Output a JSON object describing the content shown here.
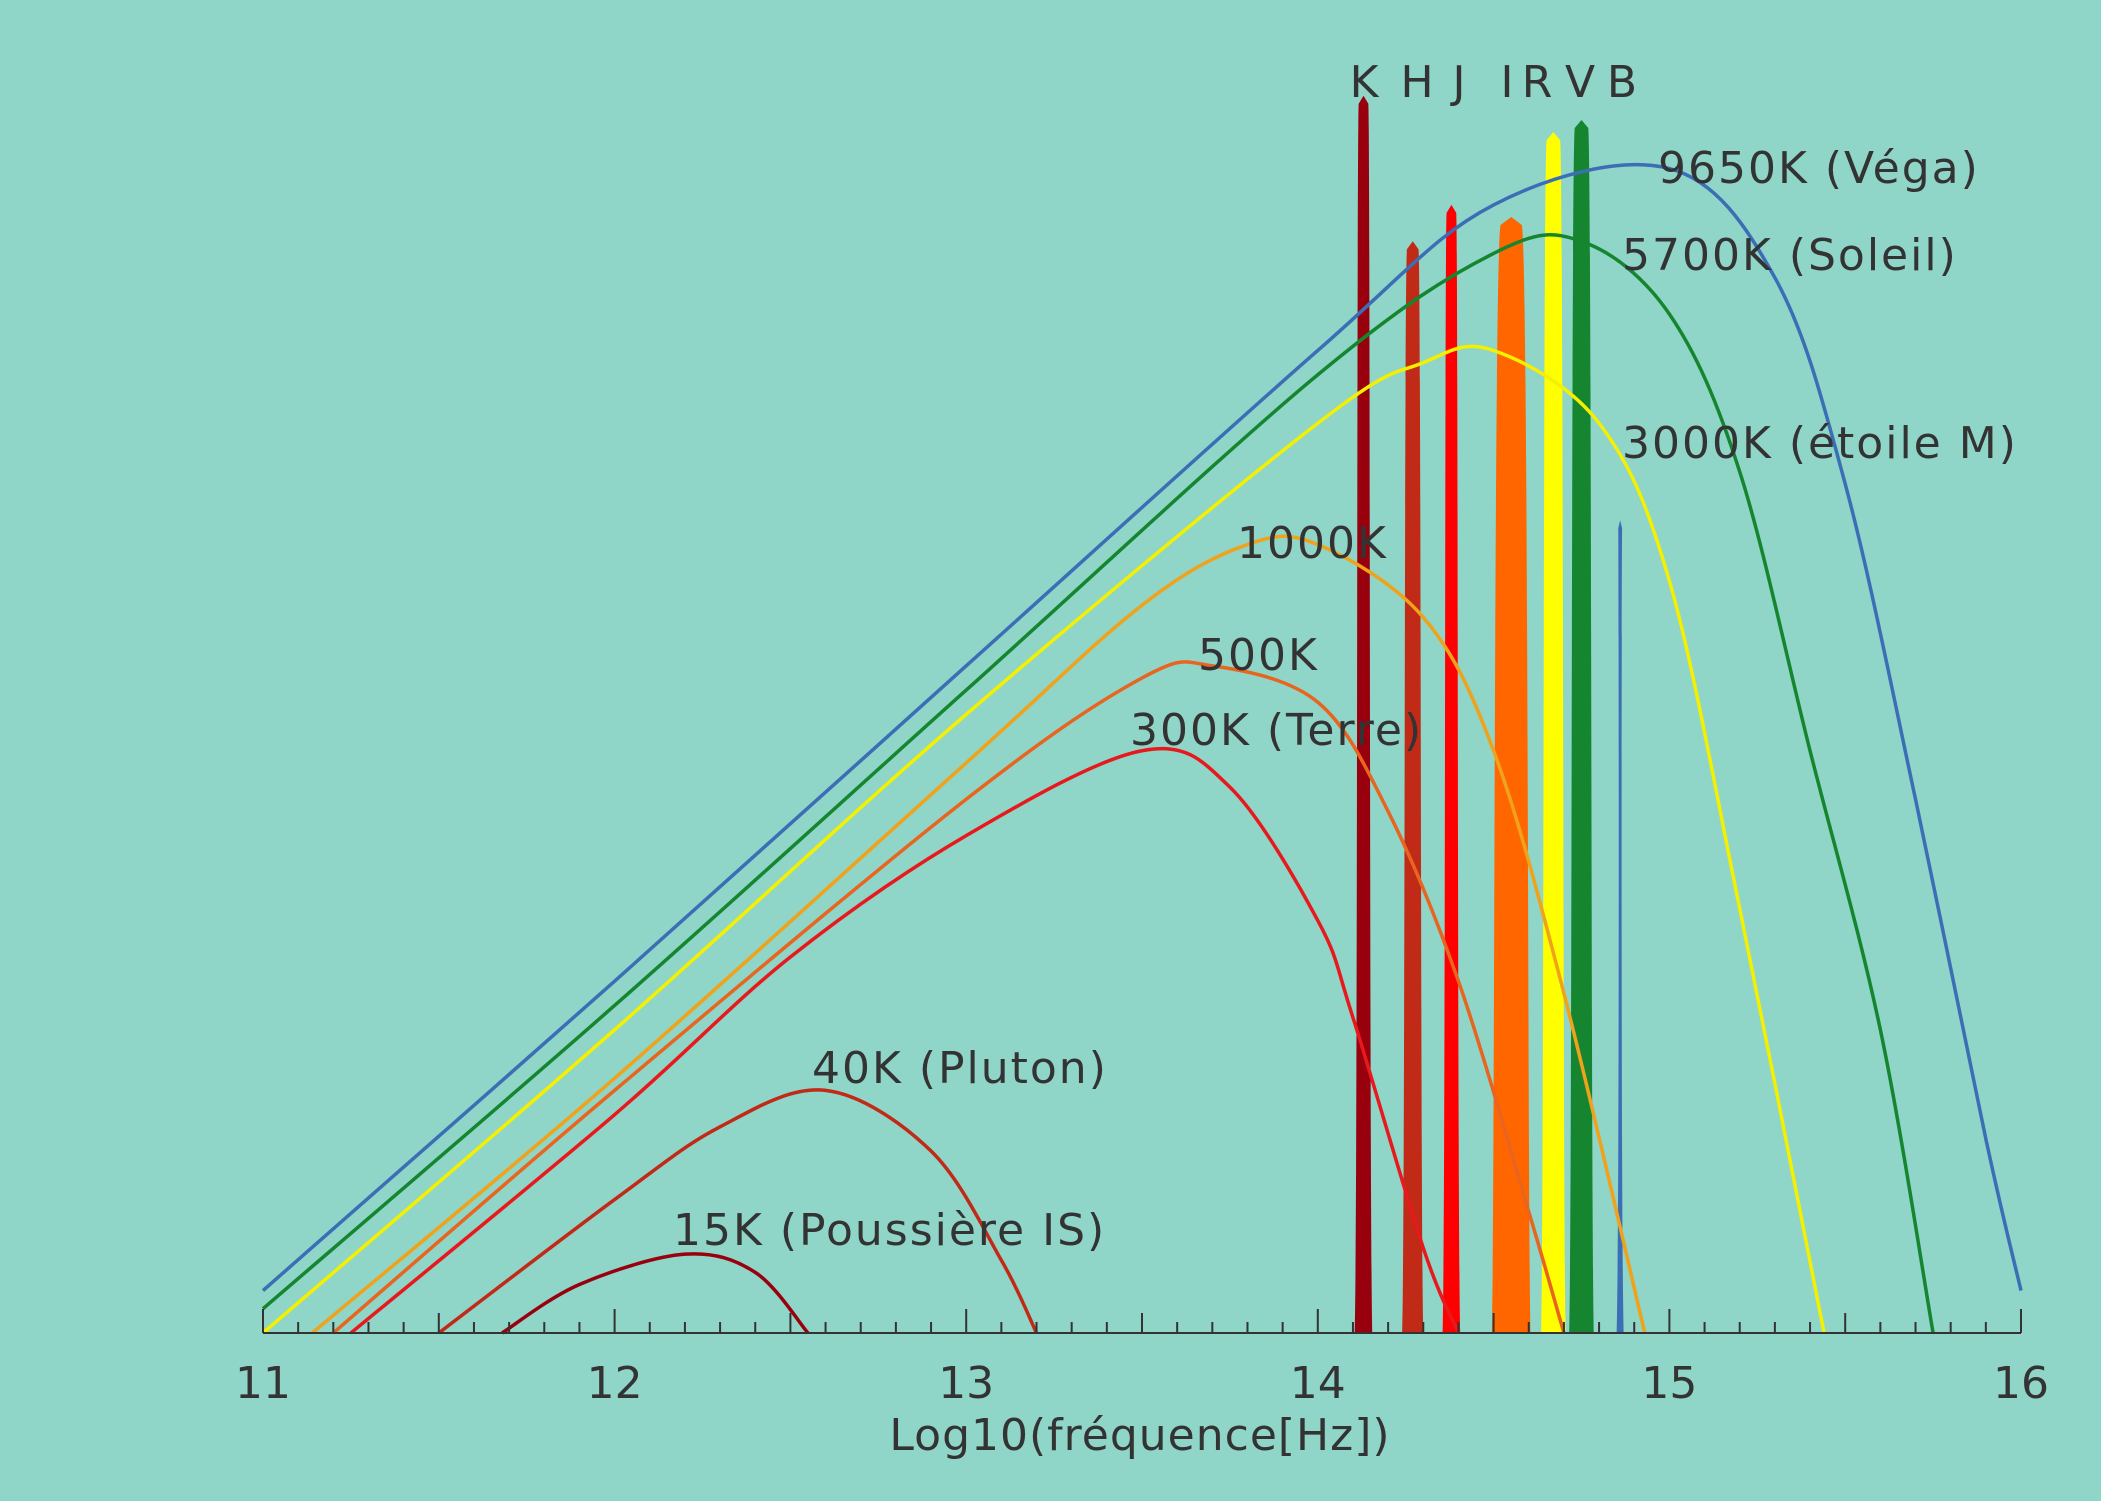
{
  "chart_data": {
    "type": "line",
    "xlabel": "Log10(fréquence[Hz])",
    "ylabel": "",
    "xlim": [
      11,
      16
    ],
    "ylim": [
      0,
      1
    ],
    "grid": false,
    "x_ticks": [
      "11",
      "12",
      "13",
      "14",
      "15",
      "16"
    ],
    "y_scale": "log",
    "series": [
      {
        "name": "9650K (Véga)",
        "temperature": 9650,
        "color": "#3b6eb5",
        "points": [
          [
            11.0,
            0.035
          ],
          [
            12.0,
            0.29
          ],
          [
            13.0,
            0.55
          ],
          [
            14.0,
            0.81
          ],
          [
            14.5,
            0.93
          ],
          [
            15.0,
            0.96
          ],
          [
            15.3,
            0.87
          ],
          [
            15.5,
            0.7
          ],
          [
            15.7,
            0.44
          ],
          [
            15.9,
            0.16
          ],
          [
            16.0,
            0.035
          ]
        ]
      },
      {
        "name": "5700K (Soleil)",
        "temperature": 5700,
        "color": "#15862f",
        "points": [
          [
            11.0,
            0.02
          ],
          [
            12.0,
            0.27
          ],
          [
            13.0,
            0.53
          ],
          [
            14.0,
            0.79
          ],
          [
            14.5,
            0.89
          ],
          [
            14.75,
            0.9
          ],
          [
            15.0,
            0.84
          ],
          [
            15.2,
            0.71
          ],
          [
            15.4,
            0.48
          ],
          [
            15.6,
            0.25
          ],
          [
            15.75,
            0.0
          ]
        ]
      },
      {
        "name": "3000K (étoile M)",
        "temperature": 3000,
        "color": "#f4f000",
        "points": [
          [
            11.0,
            0.0
          ],
          [
            12.0,
            0.25
          ],
          [
            13.0,
            0.51
          ],
          [
            14.0,
            0.75
          ],
          [
            14.3,
            0.8
          ],
          [
            14.5,
            0.81
          ],
          [
            14.8,
            0.75
          ],
          [
            15.0,
            0.62
          ],
          [
            15.2,
            0.35
          ],
          [
            15.44,
            0.0
          ]
        ]
      },
      {
        "name": "1000K",
        "temperature": 1000,
        "color": "#f0a21a",
        "points": [
          [
            11.14,
            0.0
          ],
          [
            12.0,
            0.21
          ],
          [
            13.0,
            0.47
          ],
          [
            13.5,
            0.6
          ],
          [
            13.8,
            0.65
          ],
          [
            14.0,
            0.65
          ],
          [
            14.3,
            0.59
          ],
          [
            14.5,
            0.48
          ],
          [
            14.7,
            0.28
          ],
          [
            14.93,
            0.0
          ]
        ]
      },
      {
        "name": "500K",
        "temperature": 500,
        "color": "#e8651f",
        "points": [
          [
            11.2,
            0.0
          ],
          [
            12.0,
            0.2
          ],
          [
            13.0,
            0.44
          ],
          [
            13.5,
            0.54
          ],
          [
            13.7,
            0.55
          ],
          [
            14.0,
            0.52
          ],
          [
            14.2,
            0.43
          ],
          [
            14.4,
            0.29
          ],
          [
            14.6,
            0.1
          ],
          [
            14.7,
            0.0
          ]
        ]
      },
      {
        "name": "300K (Terre)",
        "temperature": 300,
        "color": "#e8191c",
        "points": [
          [
            11.25,
            0.0
          ],
          [
            12.0,
            0.18
          ],
          [
            12.5,
            0.31
          ],
          [
            13.0,
            0.41
          ],
          [
            13.5,
            0.48
          ],
          [
            13.75,
            0.45
          ],
          [
            14.0,
            0.34
          ],
          [
            14.1,
            0.26
          ],
          [
            14.3,
            0.07
          ],
          [
            14.4,
            0.0
          ]
        ]
      },
      {
        "name": "40K (Pluton)",
        "temperature": 40,
        "color": "#c02a16",
        "points": [
          [
            11.5,
            0.0
          ],
          [
            12.0,
            0.11
          ],
          [
            12.3,
            0.17
          ],
          [
            12.6,
            0.2
          ],
          [
            12.9,
            0.15
          ],
          [
            13.1,
            0.06
          ],
          [
            13.2,
            0.0
          ]
        ]
      },
      {
        "name": "15K (Poussière IS)",
        "temperature": 15,
        "color": "#99000e",
        "points": [
          [
            11.68,
            0.0
          ],
          [
            11.9,
            0.04
          ],
          [
            12.2,
            0.065
          ],
          [
            12.4,
            0.05
          ],
          [
            12.55,
            0.0
          ]
        ]
      }
    ],
    "bands": [
      {
        "name": "K",
        "color": "#99000e",
        "center": 14.13,
        "width": 0.05,
        "height": 1.02
      },
      {
        "name": "H",
        "color": "#c02a16",
        "center": 14.27,
        "width": 0.06,
        "height": 0.9
      },
      {
        "name": "J",
        "color": "#ff0000",
        "center": 14.38,
        "width": 0.05,
        "height": 0.93
      },
      {
        "name": "I",
        "color": "#ff6600",
        "center": 14.55,
        "width": 0.11,
        "height": 0.92
      },
      {
        "name": "R",
        "color": "#ffff00",
        "center": 14.67,
        "width": 0.07,
        "height": 0.99
      },
      {
        "name": "V",
        "color": "#15862f",
        "center": 14.75,
        "width": 0.07,
        "height": 1.0
      },
      {
        "name": "B",
        "color": "#3b6eb5",
        "center": 14.86,
        "width": 0.02,
        "height": 0.67
      }
    ],
    "band_letters": [
      "K",
      "H",
      "J",
      "I",
      "R",
      "V",
      "B"
    ]
  }
}
